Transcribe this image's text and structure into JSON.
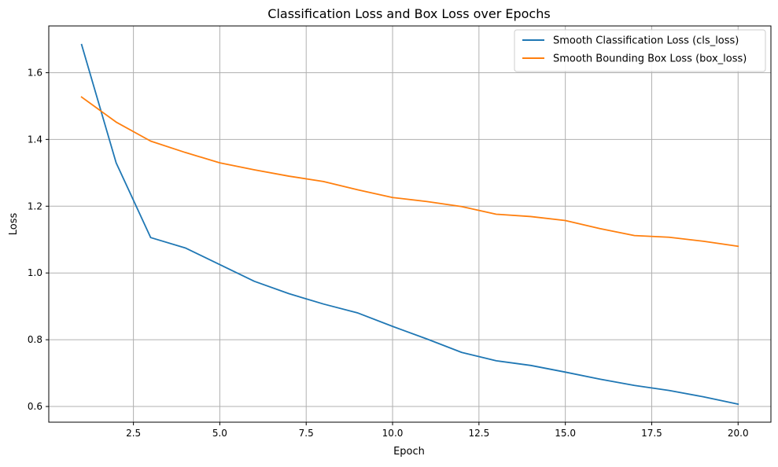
{
  "chart_data": {
    "type": "line",
    "title": "Classification Loss and Box Loss over Epochs",
    "xlabel": "Epoch",
    "ylabel": "Loss",
    "xlim": [
      0.05,
      20.95
    ],
    "ylim": [
      0.553,
      1.74
    ],
    "xticks": [
      2.5,
      5.0,
      7.5,
      10.0,
      12.5,
      15.0,
      17.5,
      20.0
    ],
    "xtick_labels": [
      "2.5",
      "5.0",
      "7.5",
      "10.0",
      "12.5",
      "15.0",
      "17.5",
      "20.0"
    ],
    "yticks": [
      0.6,
      0.8,
      1.0,
      1.2,
      1.4,
      1.6
    ],
    "ytick_labels": [
      "0.6",
      "0.8",
      "1.0",
      "1.2",
      "1.4",
      "1.6"
    ],
    "grid": true,
    "legend_position": "top-right",
    "x": [
      1,
      2,
      3,
      4,
      5,
      6,
      7,
      8,
      9,
      10,
      11,
      12,
      13,
      14,
      15,
      16,
      17,
      18,
      19,
      20
    ],
    "series": [
      {
        "name": "Smooth Classification Loss (cls_loss)",
        "color": "#1f77b4",
        "values": [
          1.684,
          1.33,
          1.106,
          1.075,
          1.025,
          0.975,
          0.938,
          0.907,
          0.88,
          0.84,
          0.802,
          0.762,
          0.737,
          0.723,
          0.703,
          0.682,
          0.663,
          0.648,
          0.629,
          0.607
        ]
      },
      {
        "name": "Smooth Bounding Box Loss (box_loss)",
        "color": "#ff7f0e",
        "values": [
          1.527,
          1.452,
          1.395,
          1.361,
          1.33,
          1.309,
          1.29,
          1.274,
          1.249,
          1.226,
          1.214,
          1.199,
          1.176,
          1.169,
          1.157,
          1.133,
          1.112,
          1.107,
          1.095,
          1.08
        ]
      }
    ]
  }
}
